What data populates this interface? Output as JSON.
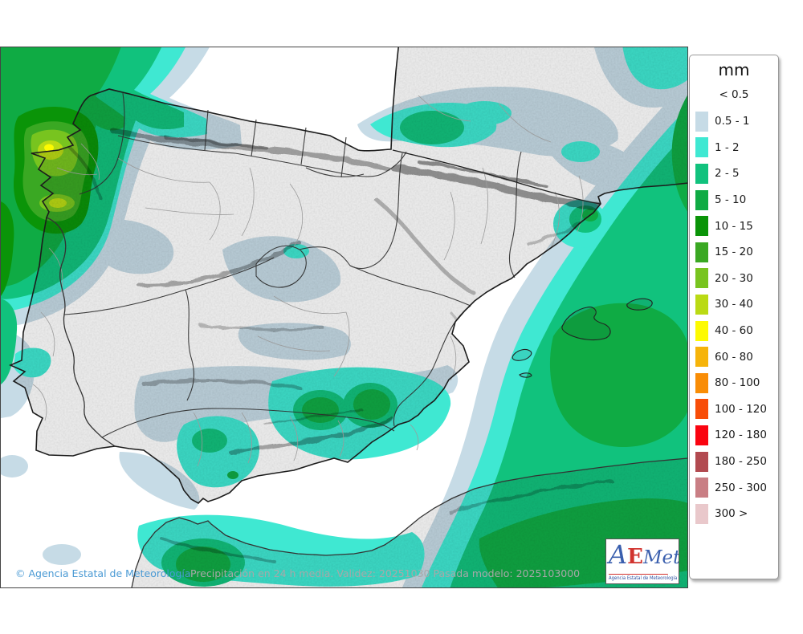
{
  "map": {
    "attribution": "© Agencia Estatal de Meteorología",
    "caption": "Precipitación en 24 h media. Validez: 20251030 Pasada modelo: 2025103000",
    "attribution_color": "#4a9ad4",
    "caption_color": "#a8a8a8"
  },
  "legend": {
    "title": "mm",
    "first_label": "< 0.5",
    "entries": [
      {
        "label": "0.5 - 1",
        "color": "#c6dbe6"
      },
      {
        "label": "1 - 2",
        "color": "#3fe8d2"
      },
      {
        "label": "2 - 5",
        "color": "#11c27d"
      },
      {
        "label": "5 - 10",
        "color": "#0fab44"
      },
      {
        "label": "10 - 15",
        "color": "#0a9408"
      },
      {
        "label": "15 - 20",
        "color": "#3aa823"
      },
      {
        "label": "20 - 30",
        "color": "#78c41f"
      },
      {
        "label": "30 - 40",
        "color": "#bada14"
      },
      {
        "label": "40 - 60",
        "color": "#fdfa02"
      },
      {
        "label": "60 - 80",
        "color": "#f6b40a"
      },
      {
        "label": "80 - 100",
        "color": "#f98d06"
      },
      {
        "label": "100 - 120",
        "color": "#f84d08"
      },
      {
        "label": "120 - 180",
        "color": "#fa0410"
      },
      {
        "label": "180 - 250",
        "color": "#b24a50"
      },
      {
        "label": "250 - 300",
        "color": "#c97e84"
      },
      {
        "label": "300 >",
        "color": "#e9c8cb"
      }
    ]
  },
  "logo": {
    "a": "A",
    "e": "E",
    "met": "Met",
    "subtitle": "Agencia Estatal de Meteorología"
  },
  "chart_data": {
    "type": "map",
    "title": "Precipitación en 24 h media",
    "validity_date": "20251030",
    "model_run": "2025103000",
    "units": "mm",
    "scale_breaks_mm": [
      0.5,
      1,
      2,
      5,
      10,
      15,
      20,
      30,
      40,
      60,
      80,
      100,
      120,
      180,
      250,
      300
    ],
    "legend_position": "right",
    "regions_summary": [
      {
        "area": "Western Galicia / Atlantic NW coast",
        "precip_mm": "10 - 40 (local maxima 30-40)"
      },
      {
        "area": "Atlantic offshore west of Iberia",
        "precip_mm": "2 - 15"
      },
      {
        "area": "Asturias - Cantabria coastal fringe",
        "precip_mm": "0.5 - 2"
      },
      {
        "area": "Central plateau (Castilla, Madrid, La Mancha)",
        "precip_mm": "< 1 with 0.5-1 patches"
      },
      {
        "area": "Ebro valley / southern France band",
        "precip_mm": "0.5 - 5"
      },
      {
        "area": "NE Catalonia coast",
        "precip_mm": "2 - 10"
      },
      {
        "area": "SE Spain (Murcia, Granada, Almería)",
        "precip_mm": "1 - 10"
      },
      {
        "area": "Costa del Sol / Málaga area",
        "precip_mm": "1 - 5"
      },
      {
        "area": "Western Mediterranean & Balearic Islands",
        "precip_mm": "2 - 10"
      },
      {
        "area": "Bay of Biscay / coastal strip of E Spain",
        "precip_mm": "< 0.5"
      },
      {
        "area": "North Africa (Rif / Algerian coast)",
        "precip_mm": "1 - 10"
      }
    ]
  }
}
